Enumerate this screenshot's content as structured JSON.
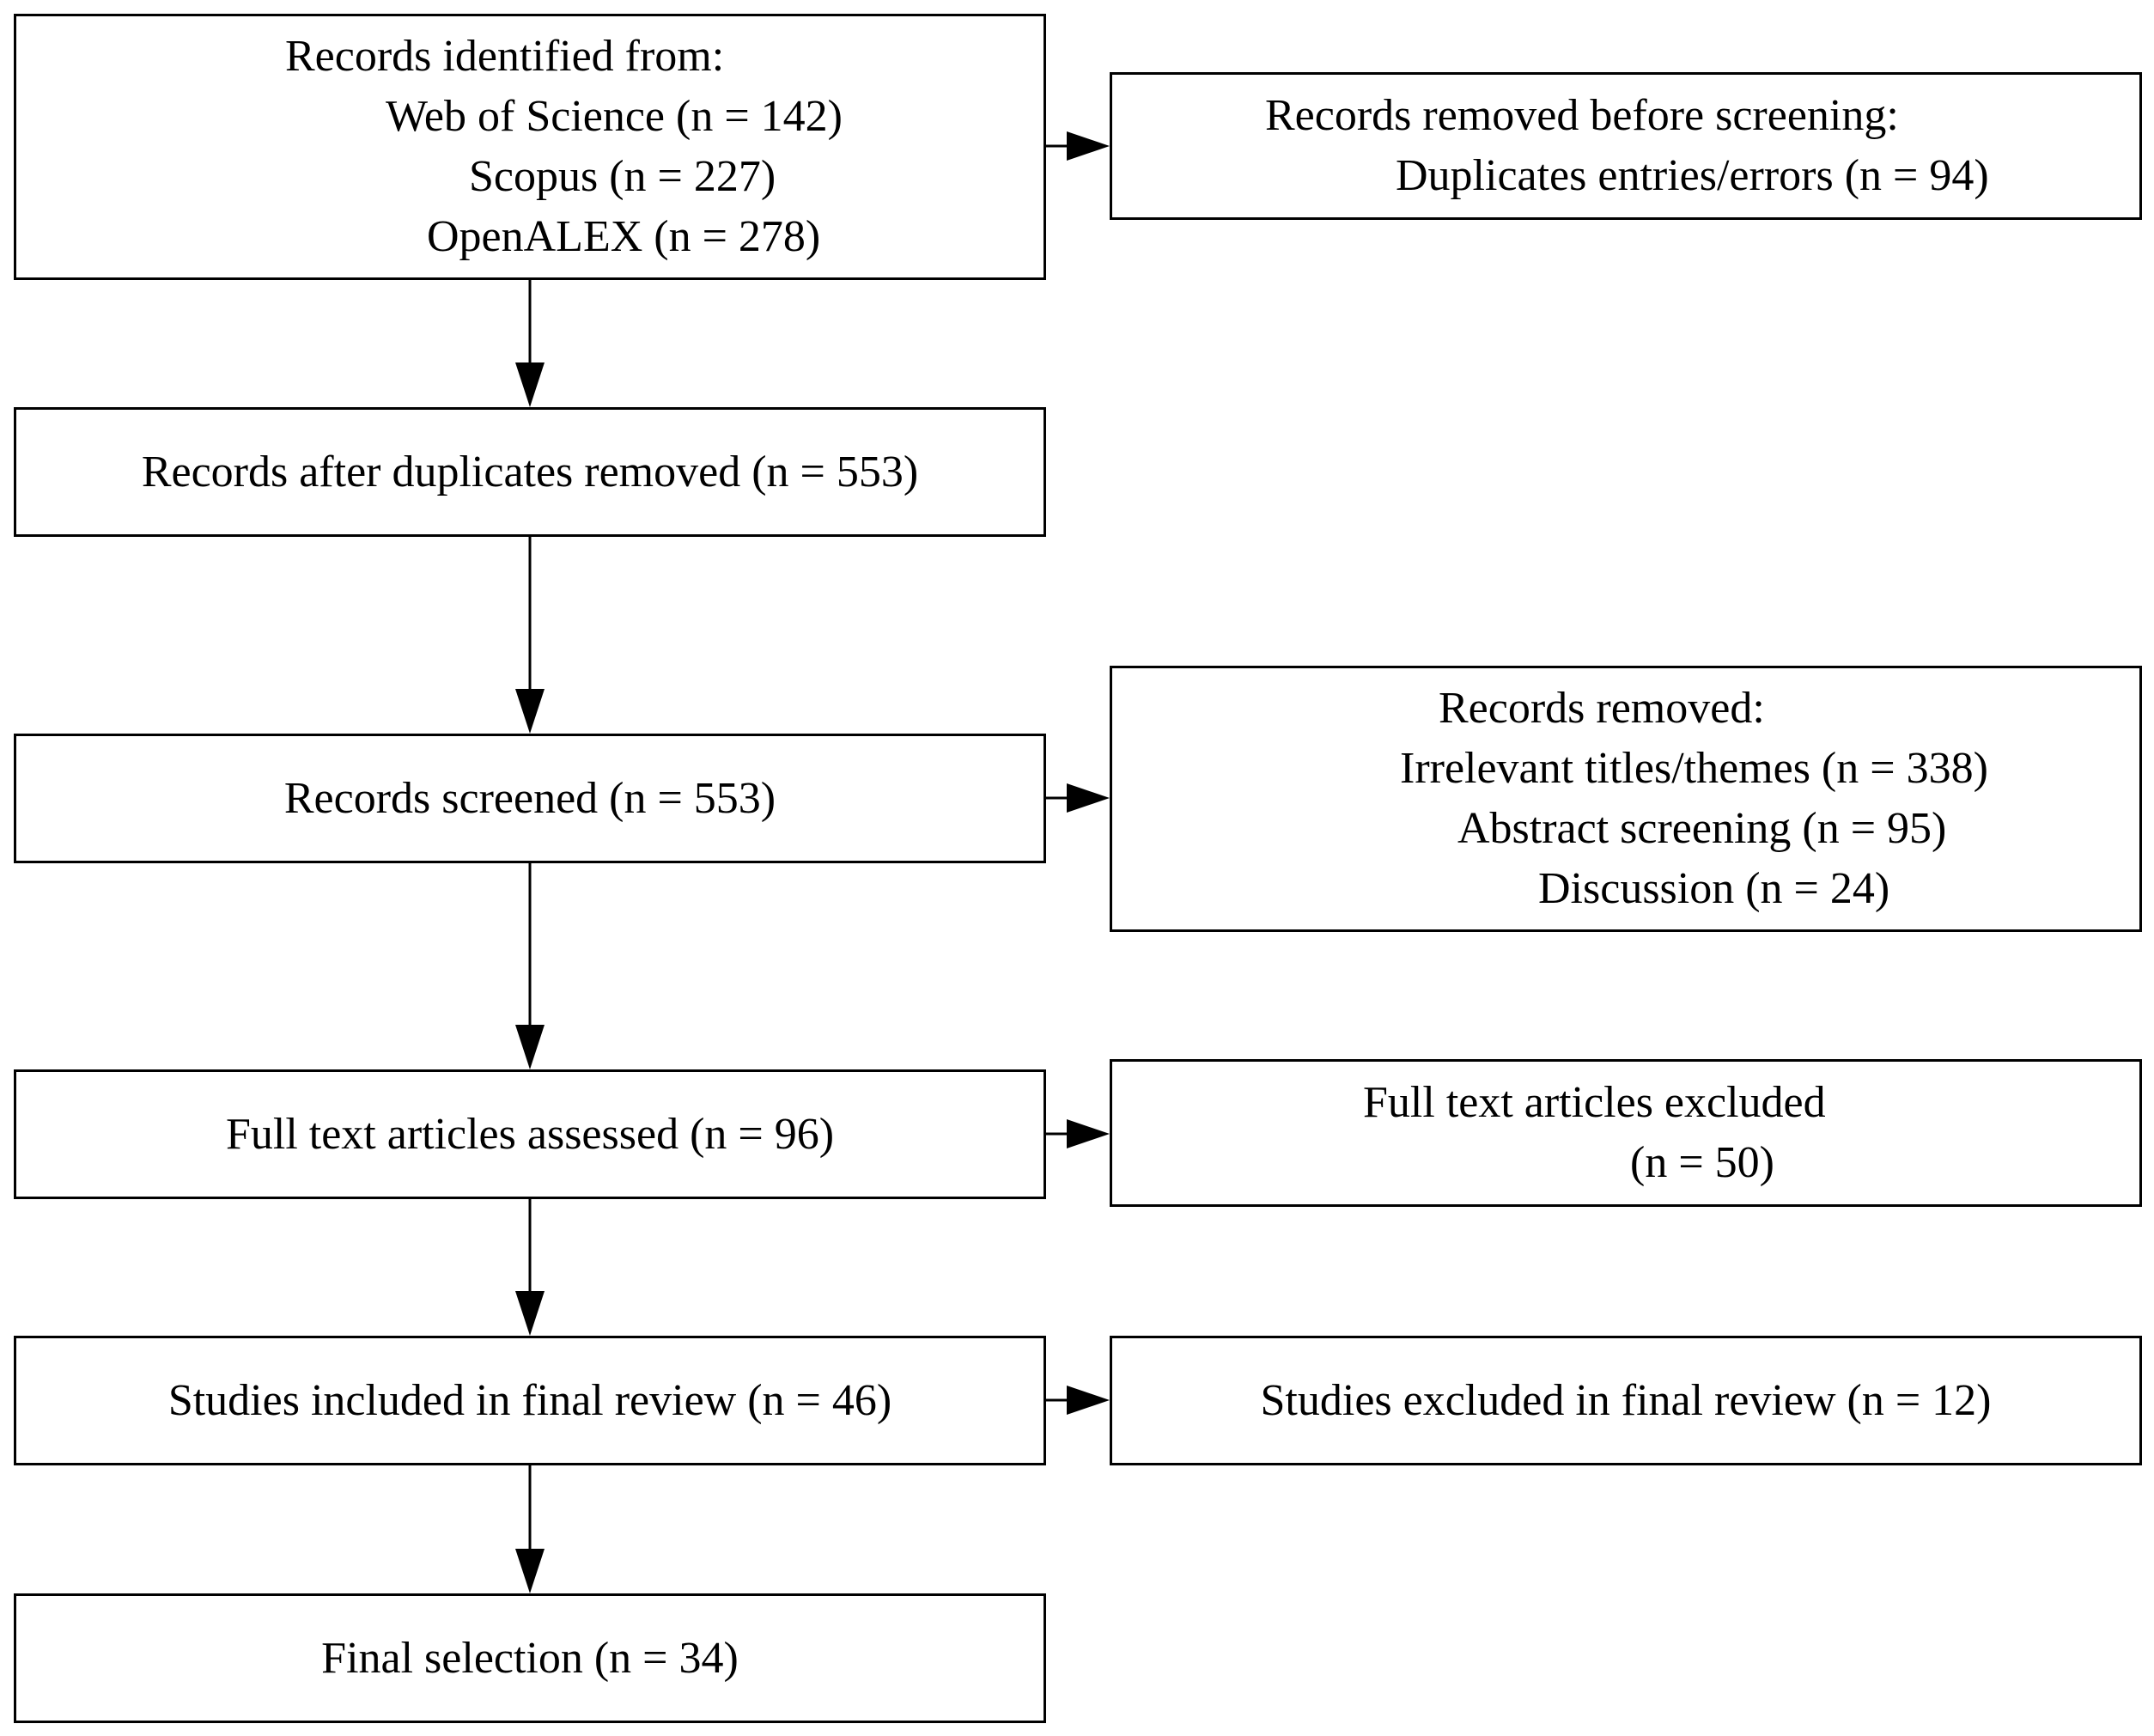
{
  "identified": {
    "heading": "Records identified from:",
    "sources": [
      "Web of Science (n = 142)",
      "Scopus (n = 227)",
      "OpenALEX (n = 278)"
    ]
  },
  "removed_before_screening": {
    "heading": "Records removed before screening:",
    "items": [
      "Duplicates entries/errors (n = 94)"
    ]
  },
  "after_duplicates": {
    "label": "Records after duplicates removed (n = 553)"
  },
  "screened": {
    "label": "Records screened (n = 553)"
  },
  "records_removed": {
    "heading": "Records removed:",
    "items": [
      "Irrelevant titles/themes (n = 338)",
      "Abstract screening (n = 95)",
      "Discussion (n = 24)"
    ]
  },
  "full_text_assessed": {
    "label": "Full text articles assessed (n = 96)"
  },
  "full_text_excluded": {
    "line1": "Full text articles excluded",
    "line2": "(n = 50)"
  },
  "included_final_review": {
    "label": "Studies included in final review (n = 46)"
  },
  "excluded_final_review": {
    "label": "Studies excluded in final review (n = 12)"
  },
  "final_selection": {
    "label": "Final selection (n = 34)"
  },
  "colors": {
    "stroke": "#000000",
    "background": "#ffffff"
  }
}
